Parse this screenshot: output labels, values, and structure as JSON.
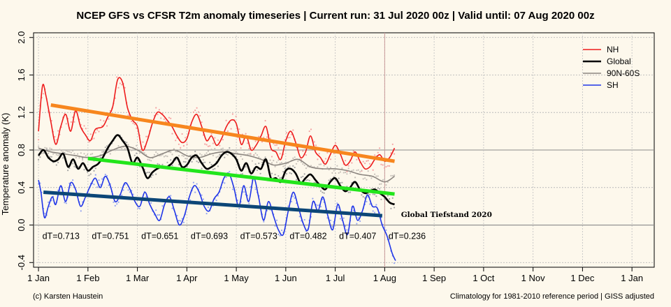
{
  "chart_data": {
    "type": "line",
    "title": "NCEP GFS vs CFSR T2m anomaly timeseries | Current run: 31 Jul 2020 00z | Valid until: 07 Aug 2020 00z",
    "ylabel": "Temperature anomaly (K)",
    "xlabel": "",
    "ylim": [
      -0.45,
      2.05
    ],
    "xlim": [
      -0.1,
      12.45
    ],
    "yticks": [
      -0.4,
      0.0,
      0.4,
      0.8,
      1.2,
      1.6,
      2.0
    ],
    "ytick_labels": [
      "-0.4",
      "0.0",
      "0.4",
      "0.8",
      "1.2",
      "1.6",
      "2.0"
    ],
    "x_ticks": [
      {
        "x": 0,
        "label": "1 Jan"
      },
      {
        "x": 1,
        "label": "1 Feb"
      },
      {
        "x": 2,
        "label": "1 Mar"
      },
      {
        "x": 3,
        "label": "1 Apr"
      },
      {
        "x": 4,
        "label": "1 May"
      },
      {
        "x": 5,
        "label": "1 Jun"
      },
      {
        "x": 6,
        "label": "1 Jul"
      },
      {
        "x": 7,
        "label": "1 Aug"
      },
      {
        "x": 8,
        "label": "1 Sep"
      },
      {
        "x": 9,
        "label": "1 Oct"
      },
      {
        "x": 10,
        "label": "1 Nov"
      },
      {
        "x": 11,
        "label": "1 Dec"
      },
      {
        "x": 12,
        "label": "1 Jan"
      }
    ],
    "current_run_x": 7.0,
    "legend_position": "top-right",
    "series": [
      {
        "name": "NH",
        "color": "#ee1c1c",
        "noise": 0.09,
        "x": [
          0,
          0.08,
          0.15,
          0.25,
          0.35,
          0.45,
          0.55,
          0.65,
          0.75,
          0.85,
          0.95,
          1.05,
          1.15,
          1.3,
          1.4,
          1.5,
          1.6,
          1.7,
          1.8,
          1.9,
          2.0,
          2.1,
          2.2,
          2.3,
          2.4,
          2.5,
          2.6,
          2.7,
          2.8,
          2.9,
          3.0,
          3.1,
          3.2,
          3.3,
          3.4,
          3.5,
          3.6,
          3.7,
          3.8,
          3.9,
          4.0,
          4.1,
          4.2,
          4.3,
          4.4,
          4.5,
          4.6,
          4.7,
          4.8,
          4.9,
          5.0,
          5.1,
          5.2,
          5.3,
          5.4,
          5.5,
          5.6,
          5.7,
          5.8,
          5.9,
          6.0,
          6.1,
          6.2,
          6.3,
          6.4,
          6.5,
          6.6,
          6.7,
          6.8,
          6.9,
          7.0,
          7.1,
          7.2
        ],
        "y": [
          1.0,
          1.48,
          1.38,
          1.1,
          0.86,
          1.05,
          1.18,
          1.0,
          1.22,
          1.05,
          0.96,
          0.9,
          1.02,
          1.05,
          1.15,
          1.26,
          1.55,
          1.52,
          1.25,
          1.12,
          1.05,
          0.8,
          0.9,
          1.08,
          1.2,
          1.18,
          1.12,
          1.05,
          0.95,
          0.88,
          0.92,
          1.1,
          1.18,
          1.05,
          0.9,
          0.95,
          0.85,
          0.92,
          1.05,
          1.12,
          1.08,
          0.86,
          0.95,
          0.8,
          0.85,
          0.95,
          1.05,
          0.82,
          0.78,
          0.7,
          0.9,
          1.0,
          0.88,
          0.72,
          0.78,
          0.95,
          0.78,
          0.72,
          0.65,
          0.75,
          0.85,
          0.76,
          0.64,
          0.68,
          0.78,
          0.68,
          0.6,
          0.62,
          0.7,
          0.75,
          0.68,
          0.72,
          0.82
        ]
      },
      {
        "name": "Global",
        "color": "#000000",
        "noise": 0.06,
        "x": [
          0,
          0.1,
          0.2,
          0.3,
          0.4,
          0.5,
          0.6,
          0.7,
          0.8,
          0.9,
          1.0,
          1.1,
          1.2,
          1.3,
          1.4,
          1.5,
          1.6,
          1.7,
          1.8,
          1.9,
          2.0,
          2.1,
          2.2,
          2.3,
          2.4,
          2.5,
          2.6,
          2.7,
          2.8,
          2.9,
          3.0,
          3.1,
          3.2,
          3.3,
          3.4,
          3.5,
          3.6,
          3.7,
          3.8,
          3.9,
          4.0,
          4.1,
          4.2,
          4.3,
          4.4,
          4.5,
          4.6,
          4.7,
          4.8,
          4.9,
          5.0,
          5.1,
          5.2,
          5.3,
          5.4,
          5.5,
          5.6,
          5.7,
          5.8,
          5.9,
          6.0,
          6.1,
          6.2,
          6.3,
          6.4,
          6.5,
          6.6,
          6.7,
          6.8,
          6.9,
          7.0,
          7.1,
          7.2
        ],
        "y": [
          0.74,
          0.8,
          0.72,
          0.68,
          0.7,
          0.76,
          0.62,
          0.7,
          0.6,
          0.66,
          0.58,
          0.62,
          0.65,
          0.72,
          0.82,
          0.9,
          0.96,
          0.9,
          0.82,
          0.66,
          0.72,
          0.62,
          0.5,
          0.56,
          0.6,
          0.62,
          0.62,
          0.66,
          0.72,
          0.62,
          0.64,
          0.72,
          0.74,
          0.66,
          0.6,
          0.62,
          0.66,
          0.74,
          0.78,
          0.76,
          0.7,
          0.58,
          0.66,
          0.55,
          0.62,
          0.6,
          0.7,
          0.5,
          0.5,
          0.46,
          0.58,
          0.6,
          0.55,
          0.45,
          0.5,
          0.54,
          0.48,
          0.42,
          0.38,
          0.46,
          0.5,
          0.42,
          0.36,
          0.4,
          0.46,
          0.38,
          0.34,
          0.36,
          0.38,
          0.34,
          0.3,
          0.24,
          0.22
        ]
      },
      {
        "name": "90N-60S",
        "color": "#8c8680",
        "noise": 0.05,
        "x": [
          0,
          0.25,
          0.5,
          0.75,
          1.0,
          1.25,
          1.5,
          1.75,
          2.0,
          2.25,
          2.5,
          2.75,
          3.0,
          3.25,
          3.5,
          3.75,
          4.0,
          4.25,
          4.5,
          4.75,
          5.0,
          5.25,
          5.5,
          5.75,
          6.0,
          6.25,
          6.5,
          6.75,
          7.0,
          7.2
        ],
        "y": [
          0.82,
          0.78,
          0.76,
          0.74,
          0.72,
          0.74,
          0.8,
          0.84,
          0.8,
          0.72,
          0.76,
          0.8,
          0.74,
          0.72,
          0.76,
          0.78,
          0.76,
          0.74,
          0.7,
          0.64,
          0.66,
          0.7,
          0.62,
          0.6,
          0.6,
          0.58,
          0.54,
          0.52,
          0.46,
          0.52
        ]
      },
      {
        "name": "SH",
        "color": "#1f35e8",
        "noise": 0.06,
        "x": [
          0,
          0.05,
          0.12,
          0.2,
          0.28,
          0.35,
          0.45,
          0.55,
          0.65,
          0.75,
          0.85,
          0.95,
          1.05,
          1.15,
          1.25,
          1.35,
          1.45,
          1.55,
          1.65,
          1.75,
          1.85,
          1.95,
          2.05,
          2.15,
          2.25,
          2.35,
          2.45,
          2.55,
          2.65,
          2.75,
          2.85,
          2.95,
          3.05,
          3.15,
          3.25,
          3.35,
          3.45,
          3.55,
          3.65,
          3.75,
          3.85,
          3.95,
          4.05,
          4.15,
          4.25,
          4.35,
          4.45,
          4.55,
          4.65,
          4.75,
          4.85,
          4.95,
          5.05,
          5.15,
          5.25,
          5.35,
          5.45,
          5.55,
          5.65,
          5.75,
          5.85,
          5.95,
          6.05,
          6.15,
          6.25,
          6.35,
          6.45,
          6.55,
          6.65,
          6.75,
          6.85,
          6.95,
          7.05,
          7.15,
          7.22
        ],
        "y": [
          0.48,
          0.35,
          0.08,
          0.2,
          0.3,
          0.22,
          0.42,
          0.25,
          0.45,
          0.38,
          0.2,
          0.3,
          0.42,
          0.5,
          0.4,
          0.52,
          0.42,
          0.25,
          0.32,
          0.45,
          0.38,
          0.25,
          0.2,
          0.35,
          0.22,
          0.12,
          0.05,
          0.22,
          0.3,
          0.15,
          0.0,
          0.1,
          0.3,
          0.42,
          0.35,
          0.2,
          0.15,
          0.28,
          0.35,
          0.5,
          0.55,
          0.4,
          0.2,
          0.42,
          0.25,
          0.5,
          0.3,
          0.05,
          0.25,
          0.1,
          -0.05,
          -0.1,
          0.15,
          0.35,
          0.2,
          0.02,
          -0.05,
          0.25,
          0.15,
          0.3,
          0.1,
          -0.05,
          0.22,
          0.05,
          -0.1,
          0.2,
          0.05,
          0.15,
          0.32,
          0.2,
          0.18,
          0.0,
          -0.12,
          -0.3,
          -0.38
        ]
      }
    ],
    "trend_lines": [
      {
        "name": "nh-trend",
        "color": "#f7861e",
        "x": [
          0.25,
          7.2
        ],
        "y": [
          1.28,
          0.68
        ]
      },
      {
        "name": "global-trend",
        "color": "#22e51b",
        "x": [
          1.0,
          7.2
        ],
        "y": [
          0.71,
          0.33
        ]
      },
      {
        "name": "sh-trend",
        "color": "#0c4677",
        "x": [
          0.1,
          6.95
        ],
        "y": [
          0.35,
          0.1
        ]
      }
    ],
    "dt_labels": [
      {
        "x": 0.05,
        "text": "dT=0.713"
      },
      {
        "x": 1.05,
        "text": "dT=0.751"
      },
      {
        "x": 2.05,
        "text": "dT=0.651"
      },
      {
        "x": 3.05,
        "text": "dT=0.693"
      },
      {
        "x": 4.05,
        "text": "dT=0.573"
      },
      {
        "x": 5.05,
        "text": "dT=0.482"
      },
      {
        "x": 6.05,
        "text": "dT=0.407"
      },
      {
        "x": 7.05,
        "text": "dT=0.236"
      }
    ],
    "dt_label_y": -0.12,
    "annotation": {
      "text": "Global Tiefstand 2020",
      "x": 7.33,
      "y": 0.1
    }
  },
  "footer": {
    "left": "(c) Karsten Haustein",
    "right": "Climatology for 1981-2010 reference period | GISS adjusted"
  }
}
